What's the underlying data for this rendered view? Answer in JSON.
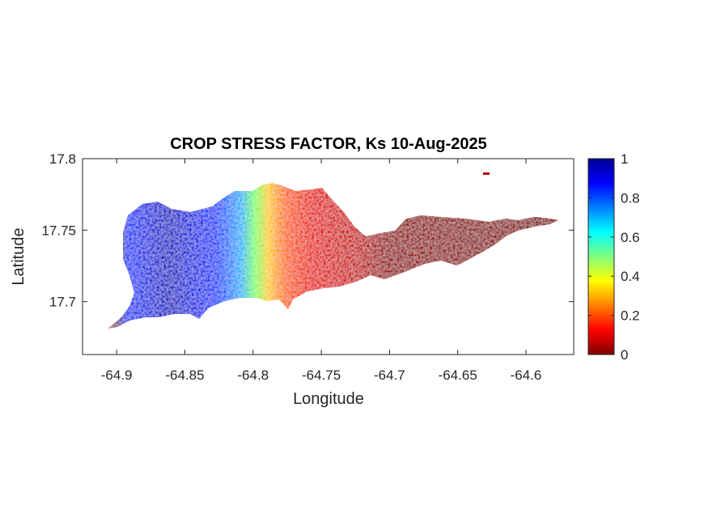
{
  "chart_data": {
    "type": "heatmap",
    "title": "CROP STRESS FACTOR, Ks  10-Aug-2025",
    "xlabel": "Longitude",
    "ylabel": "Latitude",
    "xlim": [
      -64.925,
      -64.565
    ],
    "ylim": [
      17.663,
      17.8
    ],
    "x_ticks": [
      -64.9,
      -64.85,
      -64.8,
      -64.75,
      -64.7,
      -64.65,
      -64.6
    ],
    "x_tick_labels": [
      "-64.9",
      "-64.85",
      "-64.8",
      "-64.75",
      "-64.7",
      "-64.65",
      "-64.6"
    ],
    "y_ticks": [
      17.7,
      17.75,
      17.8
    ],
    "y_tick_labels": [
      "17.7",
      "17.75",
      "17.8"
    ],
    "colormap": "jet",
    "colorbar": {
      "range": [
        0,
        1
      ],
      "ticks": [
        0,
        0.2,
        0.4,
        0.6,
        0.8,
        1
      ],
      "tick_labels": [
        "0",
        "0.2",
        "0.4",
        "0.6",
        "0.8",
        "1"
      ]
    },
    "grid": false,
    "regions": [
      {
        "lon_range": [
          -64.9,
          -64.83
        ],
        "value": 0.9
      },
      {
        "lon_range": [
          -64.83,
          -64.8
        ],
        "value": 0.65
      },
      {
        "lon_range": [
          -64.8,
          -64.77
        ],
        "value": 0.3
      },
      {
        "lon_range": [
          -64.77,
          -64.71
        ],
        "value": 0.1
      },
      {
        "lon_range": [
          -64.71,
          -64.565
        ],
        "value": 0.02
      }
    ]
  }
}
